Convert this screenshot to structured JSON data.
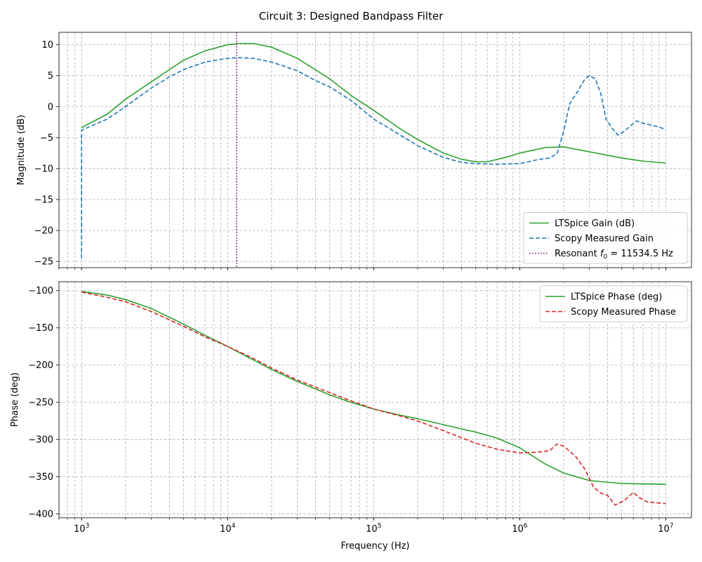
{
  "figure": {
    "title": "Circuit 3: Designed Bandpass Filter"
  },
  "chart_data": [
    {
      "type": "line",
      "title": "",
      "xlabel": "",
      "ylabel": "Magnitude (dB)",
      "xscale": "log",
      "xlim": [
        700,
        15000000
      ],
      "ylim": [
        -26,
        12
      ],
      "yticks": [
        10,
        5,
        0,
        -5,
        -10,
        -15,
        -20,
        -25
      ],
      "grid": true,
      "legend_position": "bottom-right",
      "series": [
        {
          "name": "LTSpice Gain (dB)",
          "color": "#2ca02c",
          "style": "solid",
          "points": [
            [
              1000,
              -3.4
            ],
            [
              1500,
              -1.2
            ],
            [
              2000,
              1.2
            ],
            [
              3000,
              4.0
            ],
            [
              4000,
              6.0
            ],
            [
              5000,
              7.5
            ],
            [
              7000,
              9.0
            ],
            [
              10000,
              10.0
            ],
            [
              12000,
              10.2
            ],
            [
              15000,
              10.2
            ],
            [
              20000,
              9.6
            ],
            [
              30000,
              7.8
            ],
            [
              50000,
              4.5
            ],
            [
              70000,
              1.8
            ],
            [
              100000,
              -0.6
            ],
            [
              150000,
              -3.5
            ],
            [
              200000,
              -5.3
            ],
            [
              300000,
              -7.5
            ],
            [
              400000,
              -8.5
            ],
            [
              500000,
              -8.9
            ],
            [
              600000,
              -8.9
            ],
            [
              800000,
              -8.2
            ],
            [
              1000000,
              -7.5
            ],
            [
              1500000,
              -6.6
            ],
            [
              2000000,
              -6.5
            ],
            [
              3000000,
              -7.3
            ],
            [
              5000000,
              -8.3
            ],
            [
              7000000,
              -8.8
            ],
            [
              10000000,
              -9.1
            ]
          ]
        },
        {
          "name": "Scopy Measured Gain",
          "color": "#1f77b4",
          "style": "dashed",
          "points": [
            [
              1000,
              -24.5
            ],
            [
              1000,
              -3.8
            ],
            [
              1500,
              -2.0
            ],
            [
              2000,
              0.0
            ],
            [
              3000,
              3.0
            ],
            [
              4000,
              4.8
            ],
            [
              5000,
              6.0
            ],
            [
              7000,
              7.2
            ],
            [
              10000,
              7.8
            ],
            [
              12000,
              7.9
            ],
            [
              15000,
              7.8
            ],
            [
              20000,
              7.2
            ],
            [
              30000,
              5.8
            ],
            [
              40000,
              4.2
            ],
            [
              50000,
              3.2
            ],
            [
              70000,
              1.0
            ],
            [
              100000,
              -2.0
            ],
            [
              150000,
              -4.5
            ],
            [
              200000,
              -6.3
            ],
            [
              300000,
              -8.2
            ],
            [
              400000,
              -9.0
            ],
            [
              500000,
              -9.2
            ],
            [
              700000,
              -9.3
            ],
            [
              1000000,
              -9.2
            ],
            [
              1300000,
              -8.6
            ],
            [
              1600000,
              -8.3
            ],
            [
              1800000,
              -7.6
            ],
            [
              2000000,
              -4.0
            ],
            [
              2200000,
              0.5
            ],
            [
              2500000,
              2.5
            ],
            [
              2800000,
              4.5
            ],
            [
              3000000,
              5.0
            ],
            [
              3300000,
              4.5
            ],
            [
              3600000,
              2.0
            ],
            [
              3900000,
              -2.0
            ],
            [
              4300000,
              -3.5
            ],
            [
              4700000,
              -4.6
            ],
            [
              5200000,
              -4.0
            ],
            [
              5800000,
              -3.0
            ],
            [
              6300000,
              -2.3
            ],
            [
              7000000,
              -2.7
            ],
            [
              8000000,
              -3.0
            ],
            [
              9000000,
              -3.3
            ],
            [
              10000000,
              -3.7
            ]
          ]
        },
        {
          "name": "Resonant f0 = 11534.5 Hz",
          "color": "#800080",
          "style": "dotted",
          "vline": 11534.5
        }
      ]
    },
    {
      "type": "line",
      "title": "",
      "xlabel": "Frequency (Hz)",
      "ylabel": "Phase (deg)",
      "xscale": "log",
      "xlim": [
        700,
        15000000
      ],
      "ylim": [
        -405,
        -88
      ],
      "yticks": [
        -100,
        -150,
        -200,
        -250,
        -300,
        -350,
        -400
      ],
      "xticks": [
        "10^3",
        "10^4",
        "10^5",
        "10^6",
        "10^7"
      ],
      "grid": true,
      "legend_position": "top-right",
      "series": [
        {
          "name": "LTSpice Phase (deg)",
          "color": "#2ca02c",
          "style": "solid",
          "points": [
            [
              1000,
              -101
            ],
            [
              1500,
              -106
            ],
            [
              2000,
              -112
            ],
            [
              3000,
              -124
            ],
            [
              5000,
              -145
            ],
            [
              7000,
              -160
            ],
            [
              10000,
              -175
            ],
            [
              15000,
              -193
            ],
            [
              20000,
              -206
            ],
            [
              30000,
              -222
            ],
            [
              50000,
              -240
            ],
            [
              70000,
              -250
            ],
            [
              100000,
              -259
            ],
            [
              150000,
              -267
            ],
            [
              200000,
              -272
            ],
            [
              300000,
              -280
            ],
            [
              500000,
              -290
            ],
            [
              700000,
              -298
            ],
            [
              1000000,
              -311
            ],
            [
              1500000,
              -333
            ],
            [
              2000000,
              -345
            ],
            [
              3000000,
              -355
            ],
            [
              5000000,
              -359
            ],
            [
              10000000,
              -360
            ]
          ]
        },
        {
          "name": "Scopy Measured Phase",
          "color": "#d62728",
          "style": "dashed",
          "points": [
            [
              1000,
              -102
            ],
            [
              1500,
              -109
            ],
            [
              2000,
              -115
            ],
            [
              3000,
              -128
            ],
            [
              5000,
              -148
            ],
            [
              7000,
              -162
            ],
            [
              10000,
              -175
            ],
            [
              15000,
              -191
            ],
            [
              20000,
              -204
            ],
            [
              30000,
              -220
            ],
            [
              50000,
              -237
            ],
            [
              70000,
              -248
            ],
            [
              100000,
              -259
            ],
            [
              150000,
              -268
            ],
            [
              200000,
              -275
            ],
            [
              300000,
              -288
            ],
            [
              500000,
              -305
            ],
            [
              700000,
              -313
            ],
            [
              1000000,
              -318
            ],
            [
              1300000,
              -317
            ],
            [
              1600000,
              -315
            ],
            [
              1800000,
              -306
            ],
            [
              2000000,
              -309
            ],
            [
              2400000,
              -322
            ],
            [
              2800000,
              -340
            ],
            [
              3200000,
              -364
            ],
            [
              3600000,
              -372
            ],
            [
              4000000,
              -375
            ],
            [
              4500000,
              -388
            ],
            [
              5200000,
              -382
            ],
            [
              6000000,
              -371
            ],
            [
              6600000,
              -378
            ],
            [
              7500000,
              -384
            ],
            [
              10000000,
              -386
            ]
          ]
        }
      ]
    }
  ]
}
